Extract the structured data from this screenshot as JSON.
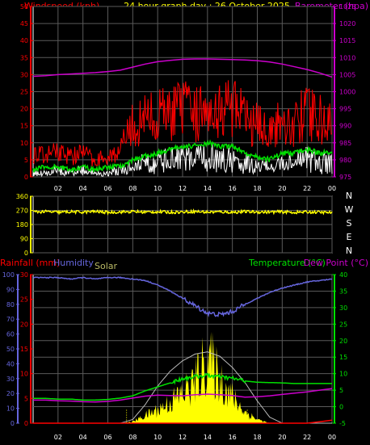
{
  "title": "24 hour graph day : 26 October 2025",
  "colors": {
    "red": "#ff0000",
    "green": "#00e000",
    "white": "#ffffff",
    "magenta": "#cc00cc",
    "yellow": "#ffff00",
    "blue": "#6666dd",
    "grid": "#5a5a5a",
    "axis": "#ffffff"
  },
  "chart_data": [
    {
      "type": "line",
      "name": "wind-barometer",
      "ylabel_left": "Windspeed (kph)",
      "ylabel_right": "Barometer (hpa)",
      "ylim_left": [
        0,
        50
      ],
      "ylim_right": [
        975,
        1025
      ],
      "yticks_left": [
        0,
        5,
        10,
        15,
        20,
        25,
        30,
        35,
        40,
        45,
        50
      ],
      "yticks_right": [
        975,
        980,
        985,
        990,
        995,
        1000,
        1005,
        1010,
        1015,
        1020,
        1025
      ],
      "xticks": [
        "02",
        "04",
        "06",
        "08",
        "10",
        "12",
        "14",
        "16",
        "18",
        "20",
        "22",
        "00"
      ],
      "x_hours": [
        0,
        1,
        2,
        3,
        4,
        5,
        6,
        7,
        8,
        9,
        10,
        11,
        12,
        13,
        14,
        15,
        16,
        17,
        18,
        19,
        20,
        21,
        22,
        23,
        24
      ],
      "series": [
        {
          "key": "gust",
          "values": [
            7,
            6,
            8,
            6,
            7,
            5,
            6,
            8,
            15,
            17,
            18,
            19,
            20,
            18,
            22,
            20,
            21,
            17,
            15,
            14,
            16,
            16,
            19,
            17,
            15
          ]
        },
        {
          "key": "avg",
          "values": [
            2,
            3,
            3,
            2,
            3,
            2,
            3,
            3,
            5,
            6,
            7,
            8,
            9,
            9,
            10,
            9,
            9,
            7,
            6,
            5,
            7,
            7,
            8,
            7,
            7
          ]
        },
        {
          "key": "speed",
          "values": [
            1,
            1,
            2,
            1,
            2,
            1,
            1,
            2,
            3,
            4,
            4,
            5,
            5,
            5,
            6,
            5,
            5,
            4,
            3,
            3,
            4,
            4,
            5,
            4,
            4
          ]
        },
        {
          "key": "barometer",
          "values": [
            1004.5,
            1004.7,
            1005,
            1005.2,
            1005.4,
            1005.6,
            1005.9,
            1006.3,
            1007.2,
            1008.1,
            1008.8,
            1009.2,
            1009.5,
            1009.6,
            1009.6,
            1009.5,
            1009.4,
            1009.3,
            1009.1,
            1008.7,
            1008.1,
            1007.3,
            1006.5,
            1005.5,
            1004.3
          ]
        }
      ]
    },
    {
      "type": "line",
      "name": "wind-direction",
      "ylim": [
        0,
        360
      ],
      "yticks": [
        0,
        90,
        180,
        270,
        360
      ],
      "direction_labels": [
        "N",
        "W",
        "S",
        "E",
        "N"
      ],
      "series": [
        {
          "key": "direction",
          "values": [
            260,
            262,
            258,
            261,
            259,
            263,
            257,
            260,
            262,
            259,
            261,
            258,
            260,
            263,
            259,
            261,
            258,
            262,
            260,
            259,
            261,
            257,
            260,
            258,
            256
          ]
        }
      ]
    },
    {
      "type": "line",
      "name": "rain-humidity-temperature",
      "ylabel_left_1": "Rainfall (mm)",
      "ylabel_left_2": "Humidity",
      "ylabel_solar": "Solar",
      "ylabel_right_1": "Temperature (°C)",
      "ylabel_right_2": "Dew Point (°C)",
      "ylim_rain": [
        0,
        30
      ],
      "ylim_humidity": [
        0,
        100
      ],
      "ylim_temp": [
        -5,
        40
      ],
      "yticks_humidity": [
        0,
        10,
        20,
        30,
        40,
        50,
        60,
        70,
        80,
        90,
        100
      ],
      "yticks_rain": [
        0,
        5,
        10,
        15,
        20,
        25,
        30
      ],
      "yticks_temp": [
        -5,
        0,
        5,
        10,
        15,
        20,
        25,
        30,
        35,
        40
      ],
      "xticks": [
        "02",
        "04",
        "06",
        "08",
        "10",
        "12",
        "14",
        "16",
        "18",
        "20",
        "22",
        "00"
      ],
      "x_hours": [
        0,
        1,
        2,
        3,
        4,
        5,
        6,
        7,
        8,
        9,
        10,
        11,
        12,
        13,
        14,
        15,
        16,
        17,
        18,
        19,
        20,
        21,
        22,
        23,
        24
      ],
      "series": [
        {
          "key": "humidity",
          "values": [
            98,
            98,
            98,
            97,
            98,
            97,
            98,
            98,
            97,
            96,
            93,
            89,
            84,
            79,
            74,
            73,
            75,
            80,
            84,
            88,
            91,
            93,
            95,
            96,
            97
          ]
        },
        {
          "key": "temperature",
          "values": [
            2.5,
            2.5,
            2.3,
            2.3,
            2,
            2,
            2.2,
            2.6,
            3.3,
            4.8,
            6,
            7.2,
            8.5,
            9.1,
            9.5,
            9,
            8.6,
            7.8,
            7.4,
            7.3,
            7.2,
            7,
            7,
            7,
            7
          ]
        },
        {
          "key": "dewpoint",
          "values": [
            2,
            2,
            1.8,
            1.7,
            1.5,
            1.4,
            1.6,
            2,
            2.6,
            3.2,
            3.5,
            3.4,
            3.3,
            3.6,
            3.8,
            3.6,
            3.4,
            2.9,
            3,
            3.3,
            3.7,
            4.1,
            4.5,
            5,
            5.5
          ]
        },
        {
          "key": "solar_max",
          "values": [
            0,
            0,
            0,
            0,
            0,
            0,
            0,
            0,
            5,
            25,
            50,
            70,
            84,
            93,
            96,
            90,
            75,
            55,
            30,
            8,
            0,
            0,
            0,
            0,
            0
          ]
        },
        {
          "key": "solar",
          "values": [
            0,
            0,
            0,
            0,
            0,
            0,
            0,
            0,
            2,
            10,
            18,
            28,
            40,
            55,
            88,
            60,
            35,
            15,
            5,
            0,
            0,
            0,
            0,
            0,
            0
          ]
        },
        {
          "key": "rainfall",
          "values": [
            0,
            0,
            0,
            0,
            0,
            0,
            0,
            0,
            0,
            0,
            0,
            0,
            0,
            0,
            0,
            0,
            0,
            0,
            0,
            0,
            0,
            0,
            0,
            0.3,
            0.6
          ]
        }
      ]
    }
  ]
}
